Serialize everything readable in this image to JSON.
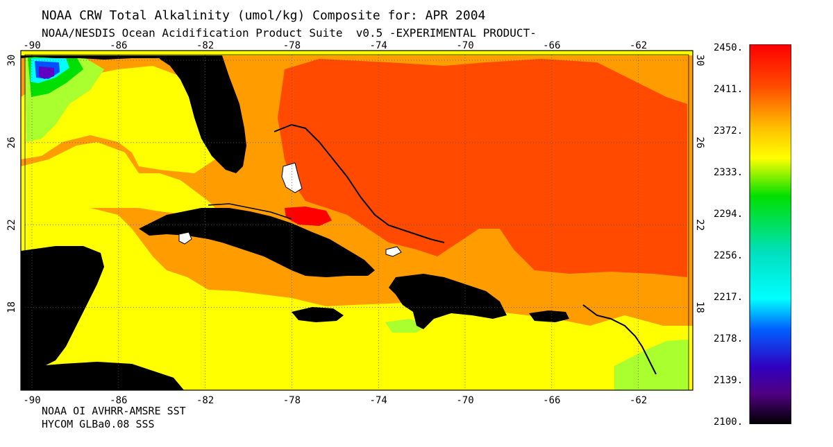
{
  "header": {
    "title": "NOAA CRW Total Alkalinity (umol/kg) Composite for: APR 2004",
    "subtitle": "NOAA/NESDIS Ocean Acidification Product Suite  v0.5 -EXPERIMENTAL PRODUCT-"
  },
  "footer": {
    "line1": "NOAA OI AVHRR-AMSRE SST",
    "line2": "HYCOM GLBa0.08 SSS"
  },
  "map": {
    "lon_ticks": [
      "-90",
      "-86",
      "-82",
      "-78",
      "-74",
      "-70",
      "-66",
      "-62"
    ],
    "lat_ticks": [
      "30",
      "26",
      "22",
      "18"
    ],
    "land_color": "#000000",
    "grid": "dotted"
  },
  "colorbar": {
    "labels": [
      "2450.",
      "2411.",
      "2372.",
      "2333.",
      "2294.",
      "2256.",
      "2217.",
      "2178.",
      "2139.",
      "2100."
    ],
    "colors": {
      "red": "#ff0000",
      "orange_red": "#ff4a00",
      "orange": "#ff9c00",
      "yellow": "#ffff00",
      "yellow_green": "#aaff2e",
      "green": "#00e000",
      "cyan": "#00ffff",
      "blue": "#0050ff",
      "violet": "#8000ff",
      "black": "#000000"
    }
  }
}
